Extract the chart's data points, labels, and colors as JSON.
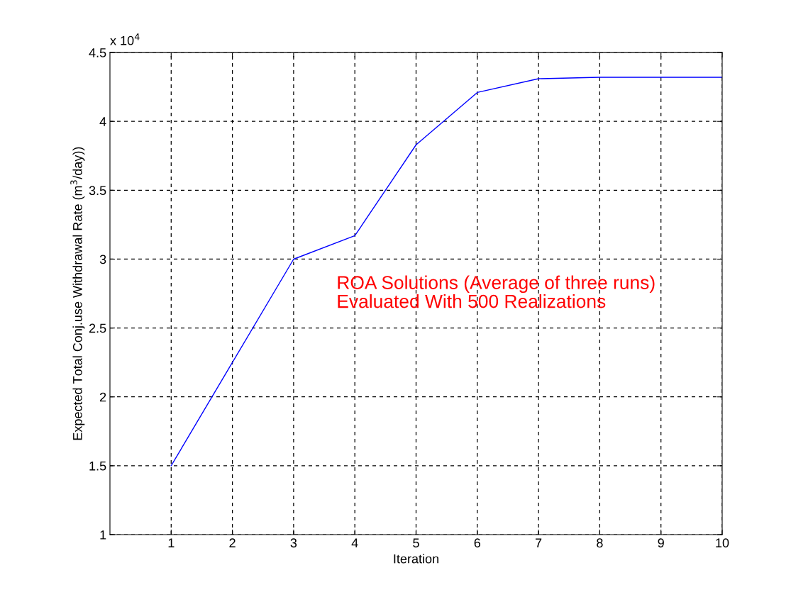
{
  "chart_data": {
    "type": "line",
    "xlabel": "Iteration",
    "ylabel": "Expected Total Conj.use Withdrawal Rate (m$^{3}$/day))",
    "x": [
      1,
      2,
      3,
      4,
      5,
      6,
      7,
      8,
      9,
      10
    ],
    "series": [
      {
        "color": "#0000ff",
        "values": [
          1.5,
          2.25,
          3.0,
          3.17,
          3.83,
          4.21,
          4.31,
          4.32,
          4.32,
          4.32
        ]
      }
    ],
    "xlim": [
      0,
      10
    ],
    "xticks": [
      1,
      2,
      3,
      4,
      5,
      6,
      7,
      8,
      9,
      10
    ],
    "ylim": [
      1,
      4.5
    ],
    "yticks": [
      1,
      1.5,
      2,
      2.5,
      3,
      3.5,
      4,
      4.5
    ],
    "annotations": [
      "x 10$^{4}$",
      "ROA Solutions (Average of three runs)\nEvaluated With 500 Realizations"
    ],
    "grid": true,
    "marker": "none",
    "line_style": "solid"
  }
}
